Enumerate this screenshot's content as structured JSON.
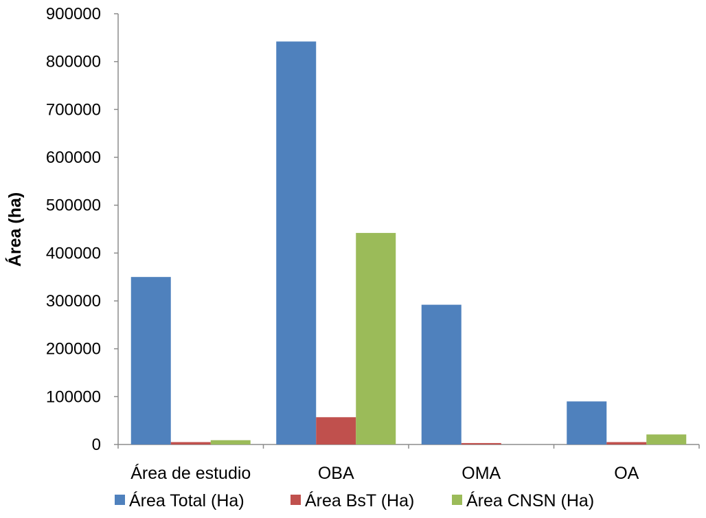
{
  "chart_data": {
    "type": "bar",
    "title": "",
    "xlabel": "",
    "ylabel": "Área (ha)",
    "categories": [
      "Área de estudio",
      "OBA",
      "OMA",
      "OA"
    ],
    "series": [
      {
        "name": "Área Total (Ha)",
        "color": "#4F81BD",
        "values": [
          350000,
          842000,
          292000,
          90000
        ]
      },
      {
        "name": "Área BsT (Ha)",
        "color": "#C0504D",
        "values": [
          5000,
          57000,
          3000,
          5000
        ]
      },
      {
        "name": "Área CNSN (Ha)",
        "color": "#9BBB59",
        "values": [
          9000,
          442000,
          0,
          21000
        ]
      }
    ],
    "ylim": [
      0,
      900000
    ],
    "yticks": [
      "0",
      "100000",
      "200000",
      "300000",
      "400000",
      "500000",
      "600000",
      "700000",
      "800000",
      "900000"
    ],
    "grid": false,
    "legend_position": "bottom"
  }
}
